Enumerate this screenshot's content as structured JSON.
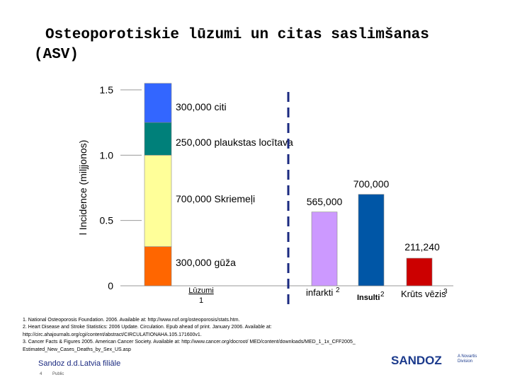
{
  "title_line1": "Osteoporotiskie lūzumi un citas saslimšanas",
  "title_line2": "(ASV)",
  "chart_data": {
    "type": "bar",
    "ylabel": "l Incidence (miljjonos)",
    "ylim": [
      0,
      1.5
    ],
    "yticks": [
      "0",
      "0.5",
      "1.0",
      "1.5"
    ],
    "stacked_bar": {
      "category": "Lūzumi",
      "category_sup": "1",
      "segments": [
        {
          "name": "gūža",
          "value": 0.3,
          "label": "300,000 gūža",
          "color": "#ff6600"
        },
        {
          "name": "Skriemeļi",
          "value": 0.7,
          "label": "700,000 Skriemeļi",
          "color": "#ffff99"
        },
        {
          "name": "plaukstas locītava",
          "value": 0.25,
          "label": "250,000 plaukstas locītava",
          "color": "#00807a"
        },
        {
          "name": "citi",
          "value": 0.3,
          "label": "300,000 citi",
          "color": "#3366ff"
        }
      ]
    },
    "bars": [
      {
        "category": "infarkti",
        "sup": "2",
        "value": 0.565,
        "label": "565,000",
        "color": "#cc99ff"
      },
      {
        "category": "Insulti",
        "sup": "2",
        "value": 0.7,
        "label": "700,000",
        "color": "#0056a6"
      },
      {
        "category": "Krūts vēzis",
        "sup": "3",
        "value": 0.21124,
        "label": "211,240",
        "color": "#cc0000"
      }
    ],
    "divider": "dashed vertical"
  },
  "footnotes": [
    "1. National Osteoporosis Foundation. 2006. Available at: http://www.nof.org/osteoporosis/stats.htm.",
    "2. Heart Disease and Stroke Statistics: 2006 Update. Circulation. Epub ahead of print. January 2006. Available at:",
    "http://circ.ahajournals.org/cgi/content/abstract/CIRCULATIONAHA.105.171600v1.",
    "3. Cancer Facts & Figures 2005. American Cancer Society. Available at: http://www.cancer.org/docroot/ MED/content/downloads/MED_1_1x_CFF2005_",
    "Estimated_New_Cases_Deaths_by_Sex_US.asp"
  ],
  "company": "Sandoz d.d.Latvia filiāle",
  "page_number": "4",
  "page_tag": "Public",
  "logo_word": "SANDOZ",
  "logo_sub_1": "A Novartis",
  "logo_sub_2": "Division"
}
